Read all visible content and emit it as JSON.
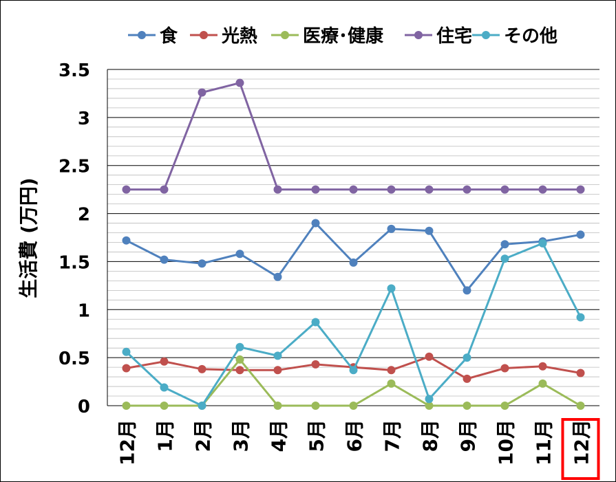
{
  "chart_data": {
    "type": "line",
    "title": "",
    "xlabel": "",
    "ylabel": "生活費 (万円)",
    "ylim": [
      0,
      3.5
    ],
    "yticks": [
      "0",
      "0.5",
      "1",
      "1.5",
      "2",
      "2.5",
      "3",
      "3.5"
    ],
    "grid": true,
    "legend": "top",
    "categories": [
      "12月",
      "1月",
      "2月",
      "3月",
      "4月",
      "5月",
      "6月",
      "7月",
      "8月",
      "9月",
      "10月",
      "11月",
      "12月"
    ],
    "highlighted_category_index": 12,
    "highlight_color": "#ff0000",
    "series": [
      {
        "name": "食",
        "color": "#4f81bd",
        "values": [
          1.72,
          1.52,
          1.48,
          1.58,
          1.34,
          1.9,
          1.49,
          1.84,
          1.82,
          1.2,
          1.68,
          1.71,
          1.78
        ]
      },
      {
        "name": "光熱",
        "color": "#c0504d",
        "values": [
          0.39,
          0.46,
          0.38,
          0.37,
          0.37,
          0.43,
          0.4,
          0.37,
          0.51,
          0.28,
          0.39,
          0.41,
          0.34
        ]
      },
      {
        "name": "医療･健康",
        "color": "#9bbb59",
        "values": [
          0,
          0,
          0,
          0.48,
          0,
          0,
          0,
          0.23,
          0,
          0,
          0,
          0.23,
          0
        ]
      },
      {
        "name": "住宅",
        "color": "#8064a2",
        "values": [
          2.25,
          2.25,
          3.26,
          3.36,
          2.25,
          2.25,
          2.25,
          2.25,
          2.25,
          2.25,
          2.25,
          2.25,
          2.25
        ]
      },
      {
        "name": "その他",
        "color": "#4bacc6",
        "values": [
          0.56,
          0.19,
          0,
          0.61,
          0.52,
          0.87,
          0.37,
          1.22,
          0.07,
          0.5,
          1.53,
          1.69,
          0.92
        ]
      }
    ]
  }
}
